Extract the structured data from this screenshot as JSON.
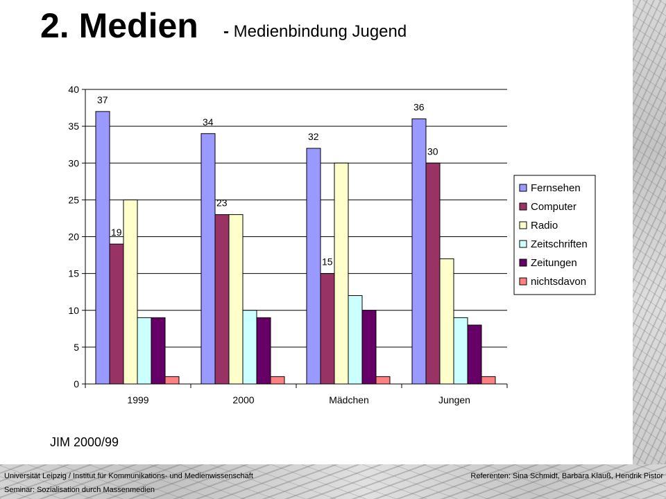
{
  "header": {
    "title": "2. Medien",
    "subtitle_dash": "-",
    "subtitle": "Medienbindung Jugend"
  },
  "source": "JIM 2000/99",
  "footer": {
    "institution": "Universität Leipzig / Institut für Kommunikations- und Medienwissenschaft",
    "seminar": "Seminar: Sozialisation durch Massenmedien",
    "presenters": "Referenten: Sina Schmidt, Barbara Klauß, Hendrik Pistor"
  },
  "chart_data": {
    "type": "bar",
    "categories": [
      "1999",
      "2000",
      "Mädchen",
      "Jungen"
    ],
    "ylim": [
      0,
      40
    ],
    "yticks": [
      "0",
      "5",
      "10",
      "15",
      "20",
      "25",
      "30",
      "35",
      "40"
    ],
    "grid": true,
    "legend_position": "right",
    "series": [
      {
        "name": "Fernsehen",
        "color": "#9999ff",
        "values": [
          37,
          34,
          32,
          36
        ],
        "labeled": [
          true,
          true,
          true,
          true
        ]
      },
      {
        "name": "Computer",
        "color": "#993366",
        "values": [
          19,
          23,
          15,
          30
        ],
        "labeled": [
          true,
          true,
          true,
          true
        ]
      },
      {
        "name": "Radio",
        "color": "#ffffcc",
        "values": [
          25,
          23,
          30,
          17
        ],
        "labeled": [
          false,
          false,
          false,
          false
        ]
      },
      {
        "name": "Zeitschriften",
        "color": "#ccffff",
        "values": [
          9,
          10,
          12,
          9
        ],
        "labeled": [
          false,
          false,
          false,
          false
        ]
      },
      {
        "name": "Zeitungen",
        "color": "#660066",
        "values": [
          9,
          9,
          10,
          8
        ],
        "labeled": [
          false,
          false,
          false,
          false
        ]
      },
      {
        "name": "nichtsdavon",
        "color": "#ff8080",
        "values": [
          1,
          1,
          1,
          1
        ],
        "labeled": [
          false,
          false,
          false,
          false
        ]
      }
    ]
  }
}
